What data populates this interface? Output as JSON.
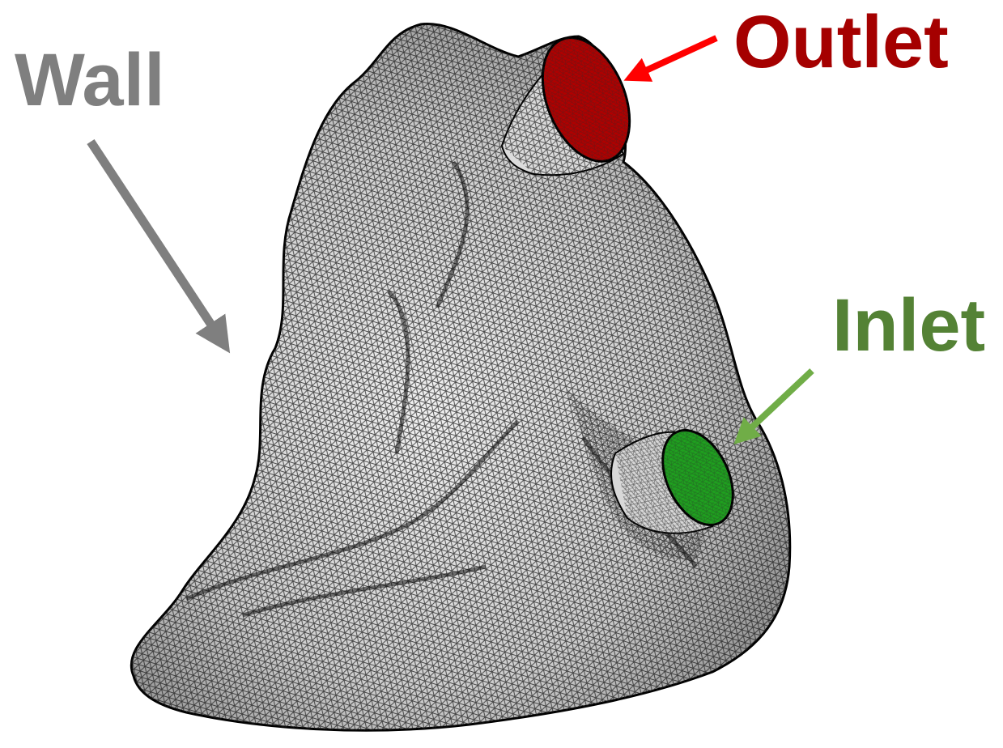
{
  "labels": {
    "wall": "Wall",
    "outlet": "Outlet",
    "inlet": "Inlet"
  }
}
